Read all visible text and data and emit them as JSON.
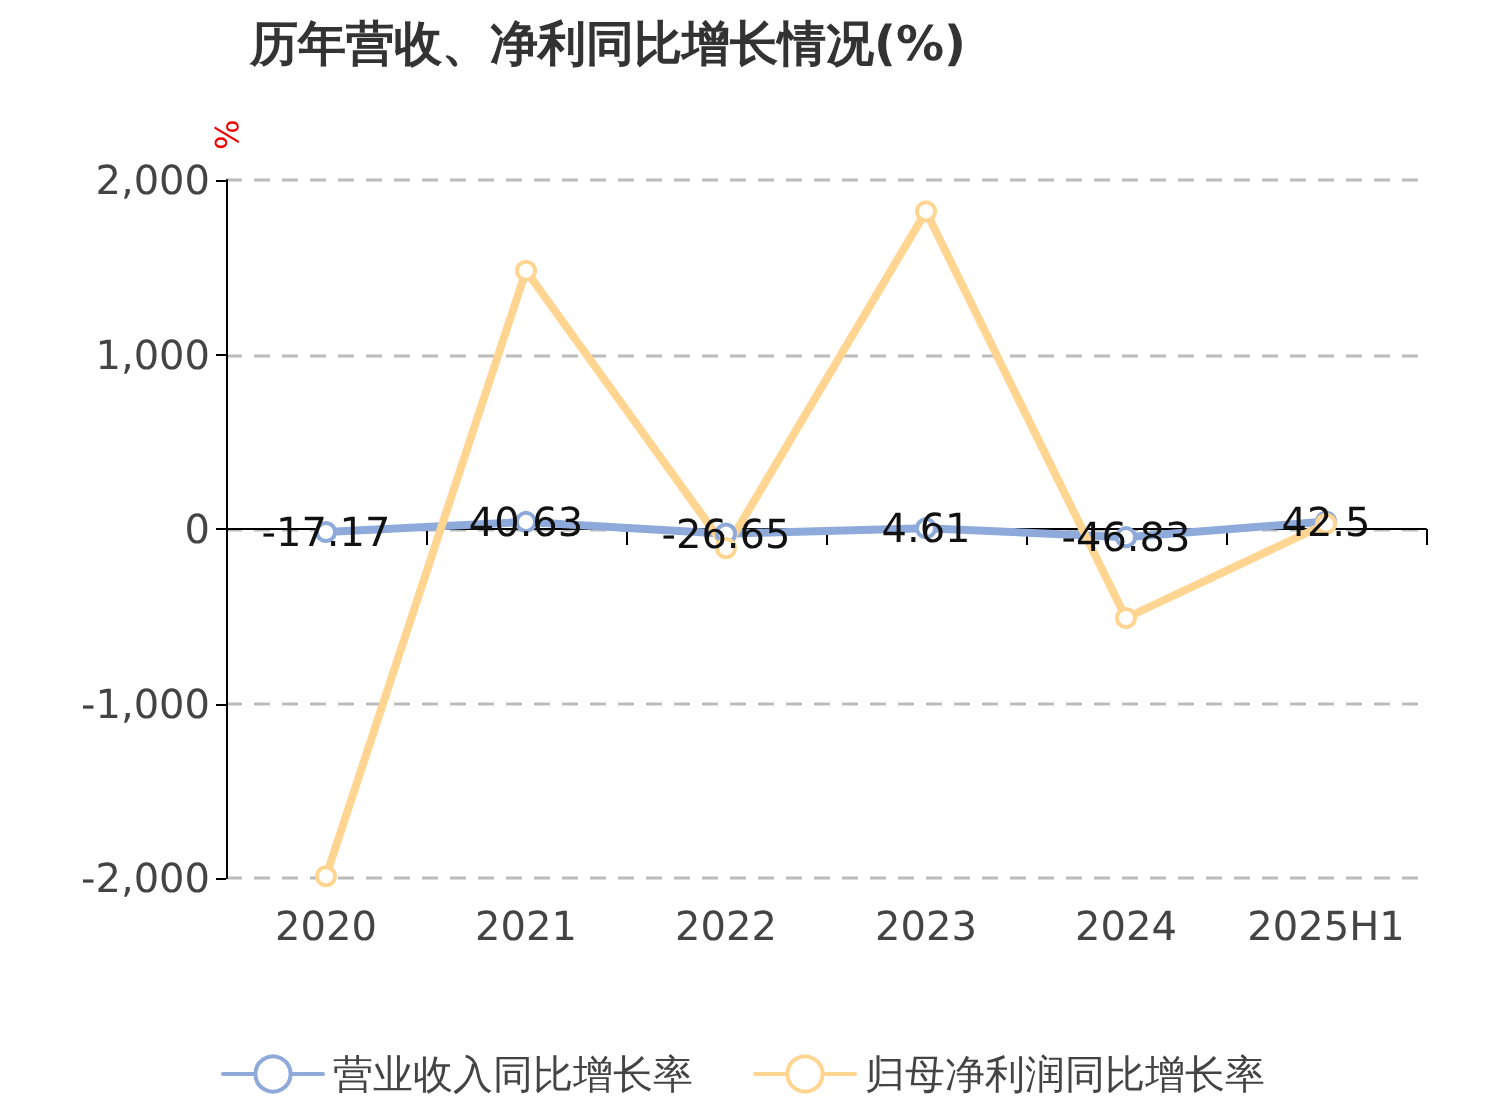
{
  "chart_data": {
    "type": "line",
    "title": "历年营收、净利同比增长情况(%)",
    "ylabel": "%",
    "categories": [
      "2020",
      "2021",
      "2022",
      "2023",
      "2024",
      "2025H1"
    ],
    "series": [
      {
        "name": "营业收入同比增长率",
        "color": "#8eaadb",
        "values": [
          -17.17,
          40.63,
          -26.65,
          4.61,
          -46.83,
          42.5
        ],
        "value_labels": [
          "-17.17",
          "40.63",
          "-26.65",
          "4.61",
          "-46.83",
          "42.5"
        ]
      },
      {
        "name": "归母净利润同比增长率",
        "color": "#ffd591",
        "values": [
          -1990,
          1480,
          -110,
          1820,
          -510,
          30
        ]
      }
    ],
    "ylim": [
      -2000,
      2000
    ],
    "yticks": [
      {
        "value": -2000,
        "label": "-2,000"
      },
      {
        "value": -1000,
        "label": "-1,000"
      },
      0,
      {
        "value": 1000,
        "label": "1,000"
      },
      {
        "value": 2000,
        "label": "2,000"
      }
    ],
    "grid": "y",
    "legend": "bottom",
    "marker": "circle",
    "line_style": "solid"
  }
}
